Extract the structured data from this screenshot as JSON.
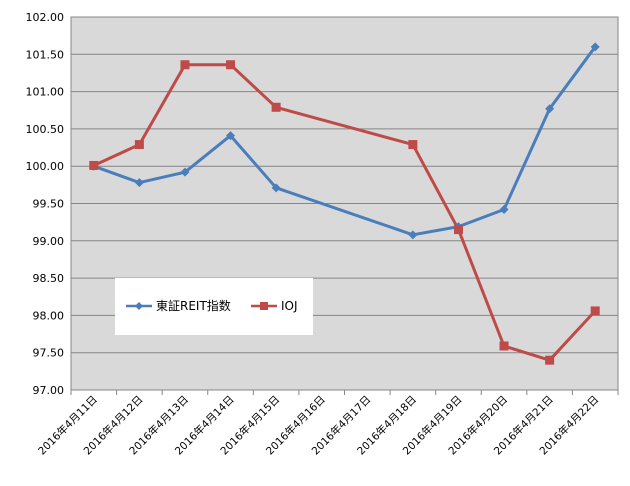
{
  "chart_data": {
    "type": "line",
    "categories": [
      "2016年4月11日",
      "2016年4月12日",
      "2016年4月13日",
      "2016年4月14日",
      "2016年4月15日",
      "2016年4月16日",
      "2016年4月17日",
      "2016年4月18日",
      "2016年4月19日",
      "2016年4月20日",
      "2016年4月21日",
      "2016年4月22日"
    ],
    "ylim": [
      97.0,
      102.0
    ],
    "yticks": [
      "97.00",
      "97.50",
      "98.00",
      "98.50",
      "99.00",
      "99.50",
      "100.00",
      "100.50",
      "101.00",
      "101.50",
      "102.00"
    ],
    "ytick_values": [
      97.0,
      97.5,
      98.0,
      98.5,
      99.0,
      99.5,
      100.0,
      100.5,
      101.0,
      101.5,
      102.0
    ],
    "grid": true,
    "legend_position": "inside-left",
    "series": [
      {
        "name": "東証REIT指数",
        "color": "#4a7ebb",
        "marker": "diamond",
        "points": [
          {
            "x": "2016年4月11日",
            "y": 100.0
          },
          {
            "x": "2016年4月12日",
            "y": 99.78
          },
          {
            "x": "2016年4月13日",
            "y": 99.92
          },
          {
            "x": "2016年4月14日",
            "y": 100.41
          },
          {
            "x": "2016年4月15日",
            "y": 99.71
          },
          {
            "x": "2016年4月18日",
            "y": 99.08
          },
          {
            "x": "2016年4月19日",
            "y": 99.19
          },
          {
            "x": "2016年4月20日",
            "y": 99.42
          },
          {
            "x": "2016年4月21日",
            "y": 100.77
          },
          {
            "x": "2016年4月22日",
            "y": 101.6
          }
        ]
      },
      {
        "name": "IOJ",
        "color": "#be4b48",
        "marker": "square",
        "points": [
          {
            "x": "2016年4月11日",
            "y": 100.01
          },
          {
            "x": "2016年4月12日",
            "y": 100.29
          },
          {
            "x": "2016年4月13日",
            "y": 101.36
          },
          {
            "x": "2016年4月14日",
            "y": 101.36
          },
          {
            "x": "2016年4月15日",
            "y": 100.79
          },
          {
            "x": "2016年4月18日",
            "y": 100.29
          },
          {
            "x": "2016年4月19日",
            "y": 99.15
          },
          {
            "x": "2016年4月20日",
            "y": 97.59
          },
          {
            "x": "2016年4月21日",
            "y": 97.4
          },
          {
            "x": "2016年4月22日",
            "y": 98.06
          }
        ]
      }
    ]
  }
}
